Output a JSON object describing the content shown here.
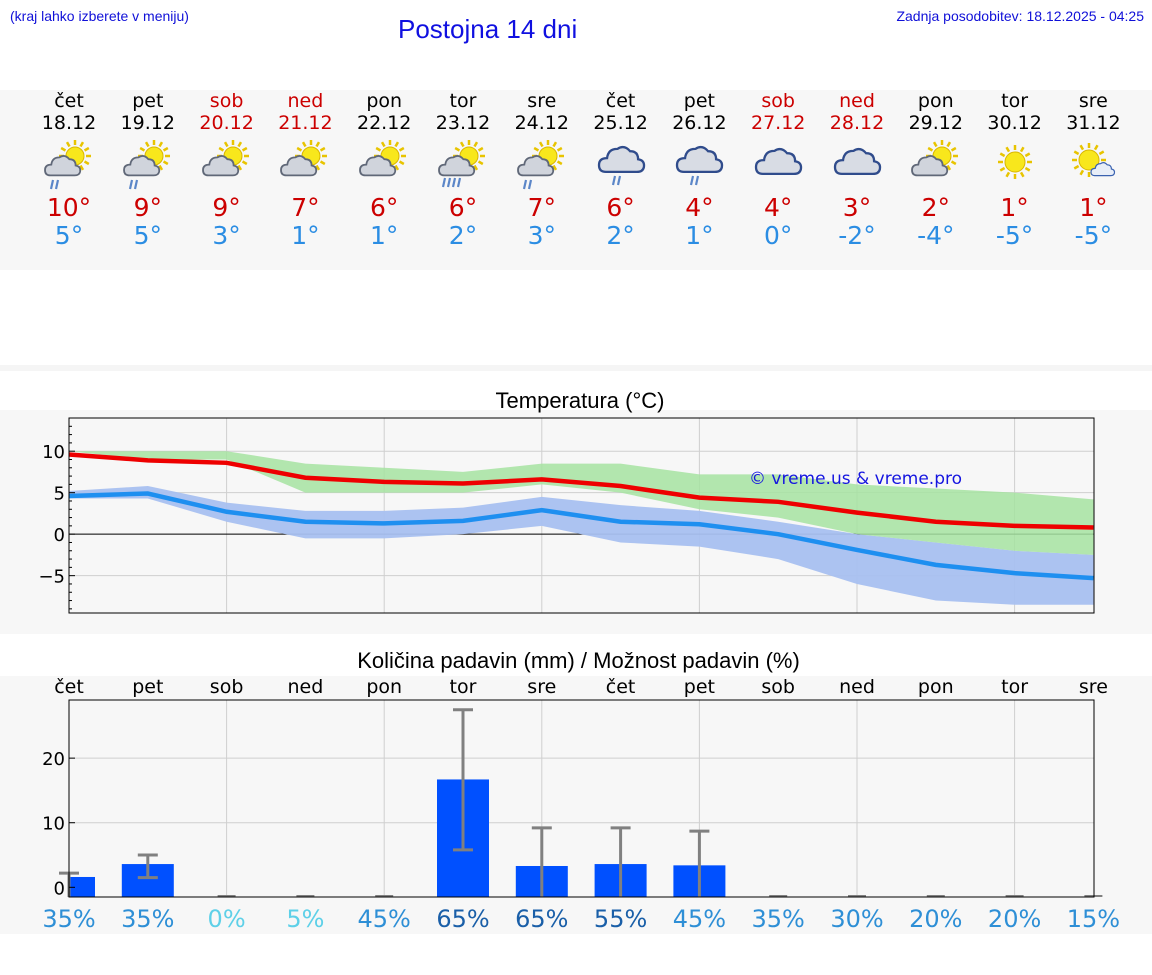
{
  "header": {
    "location_hint": "(kraj lahko izberete v meniju)",
    "title": "Postojna 14 dni",
    "last_update": "Zadnja posodobitev: 18.12.2025 - 04:25"
  },
  "forecast": [
    {
      "day": "čet",
      "date": "18.12",
      "tmax": "10°",
      "tmin": "5°",
      "weekend": false,
      "icon": "sun-cloud-rain-icon"
    },
    {
      "day": "pet",
      "date": "19.12",
      "tmax": "9°",
      "tmin": "5°",
      "weekend": false,
      "icon": "sun-cloud-rain-icon"
    },
    {
      "day": "sob",
      "date": "20.12",
      "tmax": "9°",
      "tmin": "3°",
      "weekend": true,
      "icon": "sun-cloud-icon"
    },
    {
      "day": "ned",
      "date": "21.12",
      "tmax": "7°",
      "tmin": "1°",
      "weekend": true,
      "icon": "sun-cloud-icon"
    },
    {
      "day": "pon",
      "date": "22.12",
      "tmax": "6°",
      "tmin": "1°",
      "weekend": false,
      "icon": "sun-cloud-icon"
    },
    {
      "day": "tor",
      "date": "23.12",
      "tmax": "6°",
      "tmin": "2°",
      "weekend": false,
      "icon": "sun-cloud-heavy-rain-icon"
    },
    {
      "day": "sre",
      "date": "24.12",
      "tmax": "7°",
      "tmin": "3°",
      "weekend": false,
      "icon": "sun-cloud-rain-icon"
    },
    {
      "day": "čet",
      "date": "25.12",
      "tmax": "6°",
      "tmin": "2°",
      "weekend": false,
      "icon": "cloud-rain-icon"
    },
    {
      "day": "pet",
      "date": "26.12",
      "tmax": "4°",
      "tmin": "1°",
      "weekend": false,
      "icon": "cloud-rain-icon"
    },
    {
      "day": "sob",
      "date": "27.12",
      "tmax": "4°",
      "tmin": "0°",
      "weekend": true,
      "icon": "cloud-icon"
    },
    {
      "day": "ned",
      "date": "28.12",
      "tmax": "3°",
      "tmin": "-2°",
      "weekend": true,
      "icon": "cloud-icon"
    },
    {
      "day": "pon",
      "date": "29.12",
      "tmax": "2°",
      "tmin": "-4°",
      "weekend": false,
      "icon": "sun-cloud-icon"
    },
    {
      "day": "tor",
      "date": "30.12",
      "tmax": "1°",
      "tmin": "-5°",
      "weekend": false,
      "icon": "sun-icon"
    },
    {
      "day": "sre",
      "date": "31.12",
      "tmax": "1°",
      "tmin": "-5°",
      "weekend": false,
      "icon": "sun-small-cloud-icon"
    }
  ],
  "colors": {
    "max_line": "#ee0000",
    "min_line": "#1e8ff0",
    "max_band": "#a6e3a1",
    "min_band": "#a8c0f0",
    "overlap_band": "#7cc4a6",
    "bar": "#0050ff",
    "error": "#808080",
    "weekend": "#cc0000",
    "title": "#1010e0"
  },
  "chart_data": [
    {
      "type": "line",
      "title": "Temperatura (°C)",
      "watermark": "© vreme.us & vreme.pro",
      "x": [
        0,
        1,
        2,
        3,
        4,
        5,
        6,
        7,
        8,
        9,
        10,
        11,
        12,
        13
      ],
      "ylim": [
        -9.5,
        14
      ],
      "yticks": [
        10,
        5,
        0,
        -5
      ],
      "ytick_labels": [
        "10",
        "5",
        "0",
        "−5"
      ],
      "series": [
        {
          "name": "max",
          "values": [
            9.6,
            8.9,
            8.6,
            6.8,
            6.3,
            6.1,
            6.6,
            5.8,
            4.4,
            3.9,
            2.6,
            1.5,
            1.0,
            0.8
          ],
          "band_low": [
            10.0,
            9.0,
            9.0,
            5.0,
            5.0,
            5.0,
            6.0,
            5.0,
            3.0,
            2.0,
            0.0,
            -1.0,
            -2.0,
            -2.5
          ],
          "band_high": [
            10.0,
            10.0,
            10.0,
            8.5,
            8.0,
            7.5,
            8.5,
            8.5,
            7.2,
            7.2,
            6.0,
            5.5,
            5.0,
            4.2
          ]
        },
        {
          "name": "min",
          "values": [
            4.6,
            4.9,
            2.7,
            1.5,
            1.3,
            1.6,
            2.9,
            1.5,
            1.2,
            0.0,
            -1.9,
            -3.7,
            -4.7,
            -5.3
          ],
          "band_low": [
            4.3,
            4.3,
            1.5,
            -0.5,
            -0.5,
            0.0,
            1.0,
            -1.0,
            -1.5,
            -3.0,
            -6.0,
            -8.0,
            -8.5,
            -8.5
          ],
          "band_high": [
            5.2,
            5.8,
            3.8,
            2.8,
            2.8,
            3.2,
            4.5,
            3.5,
            2.8,
            1.5,
            0.0,
            -1.0,
            -2.0,
            -2.5
          ]
        }
      ]
    },
    {
      "type": "bar",
      "title": "Količina padavin (mm) / Možnost padavin (%)",
      "categories": [
        "čet",
        "pet",
        "sob",
        "ned",
        "pon",
        "tor",
        "sre",
        "čet",
        "pet",
        "sob",
        "ned",
        "pon",
        "tor",
        "sre"
      ],
      "values": [
        1.6,
        3.6,
        0,
        0,
        0,
        16.7,
        3.3,
        3.6,
        3.4,
        0,
        0,
        0,
        0,
        0
      ],
      "error_low": [
        0,
        1.5,
        0,
        0,
        0,
        5.8,
        0,
        0,
        0,
        0,
        0,
        0,
        0,
        0
      ],
      "error_high": [
        2.2,
        5.0,
        0,
        0,
        0,
        27.5,
        9.2,
        9.2,
        8.7,
        0,
        0,
        0,
        0,
        0
      ],
      "ylim": [
        -1.5,
        29
      ],
      "yticks": [
        20,
        10,
        0
      ],
      "probability": [
        "35%",
        "35%",
        "0%",
        "5%",
        "45%",
        "65%",
        "65%",
        "55%",
        "45%",
        "35%",
        "30%",
        "20%",
        "20%",
        "15%"
      ]
    }
  ]
}
